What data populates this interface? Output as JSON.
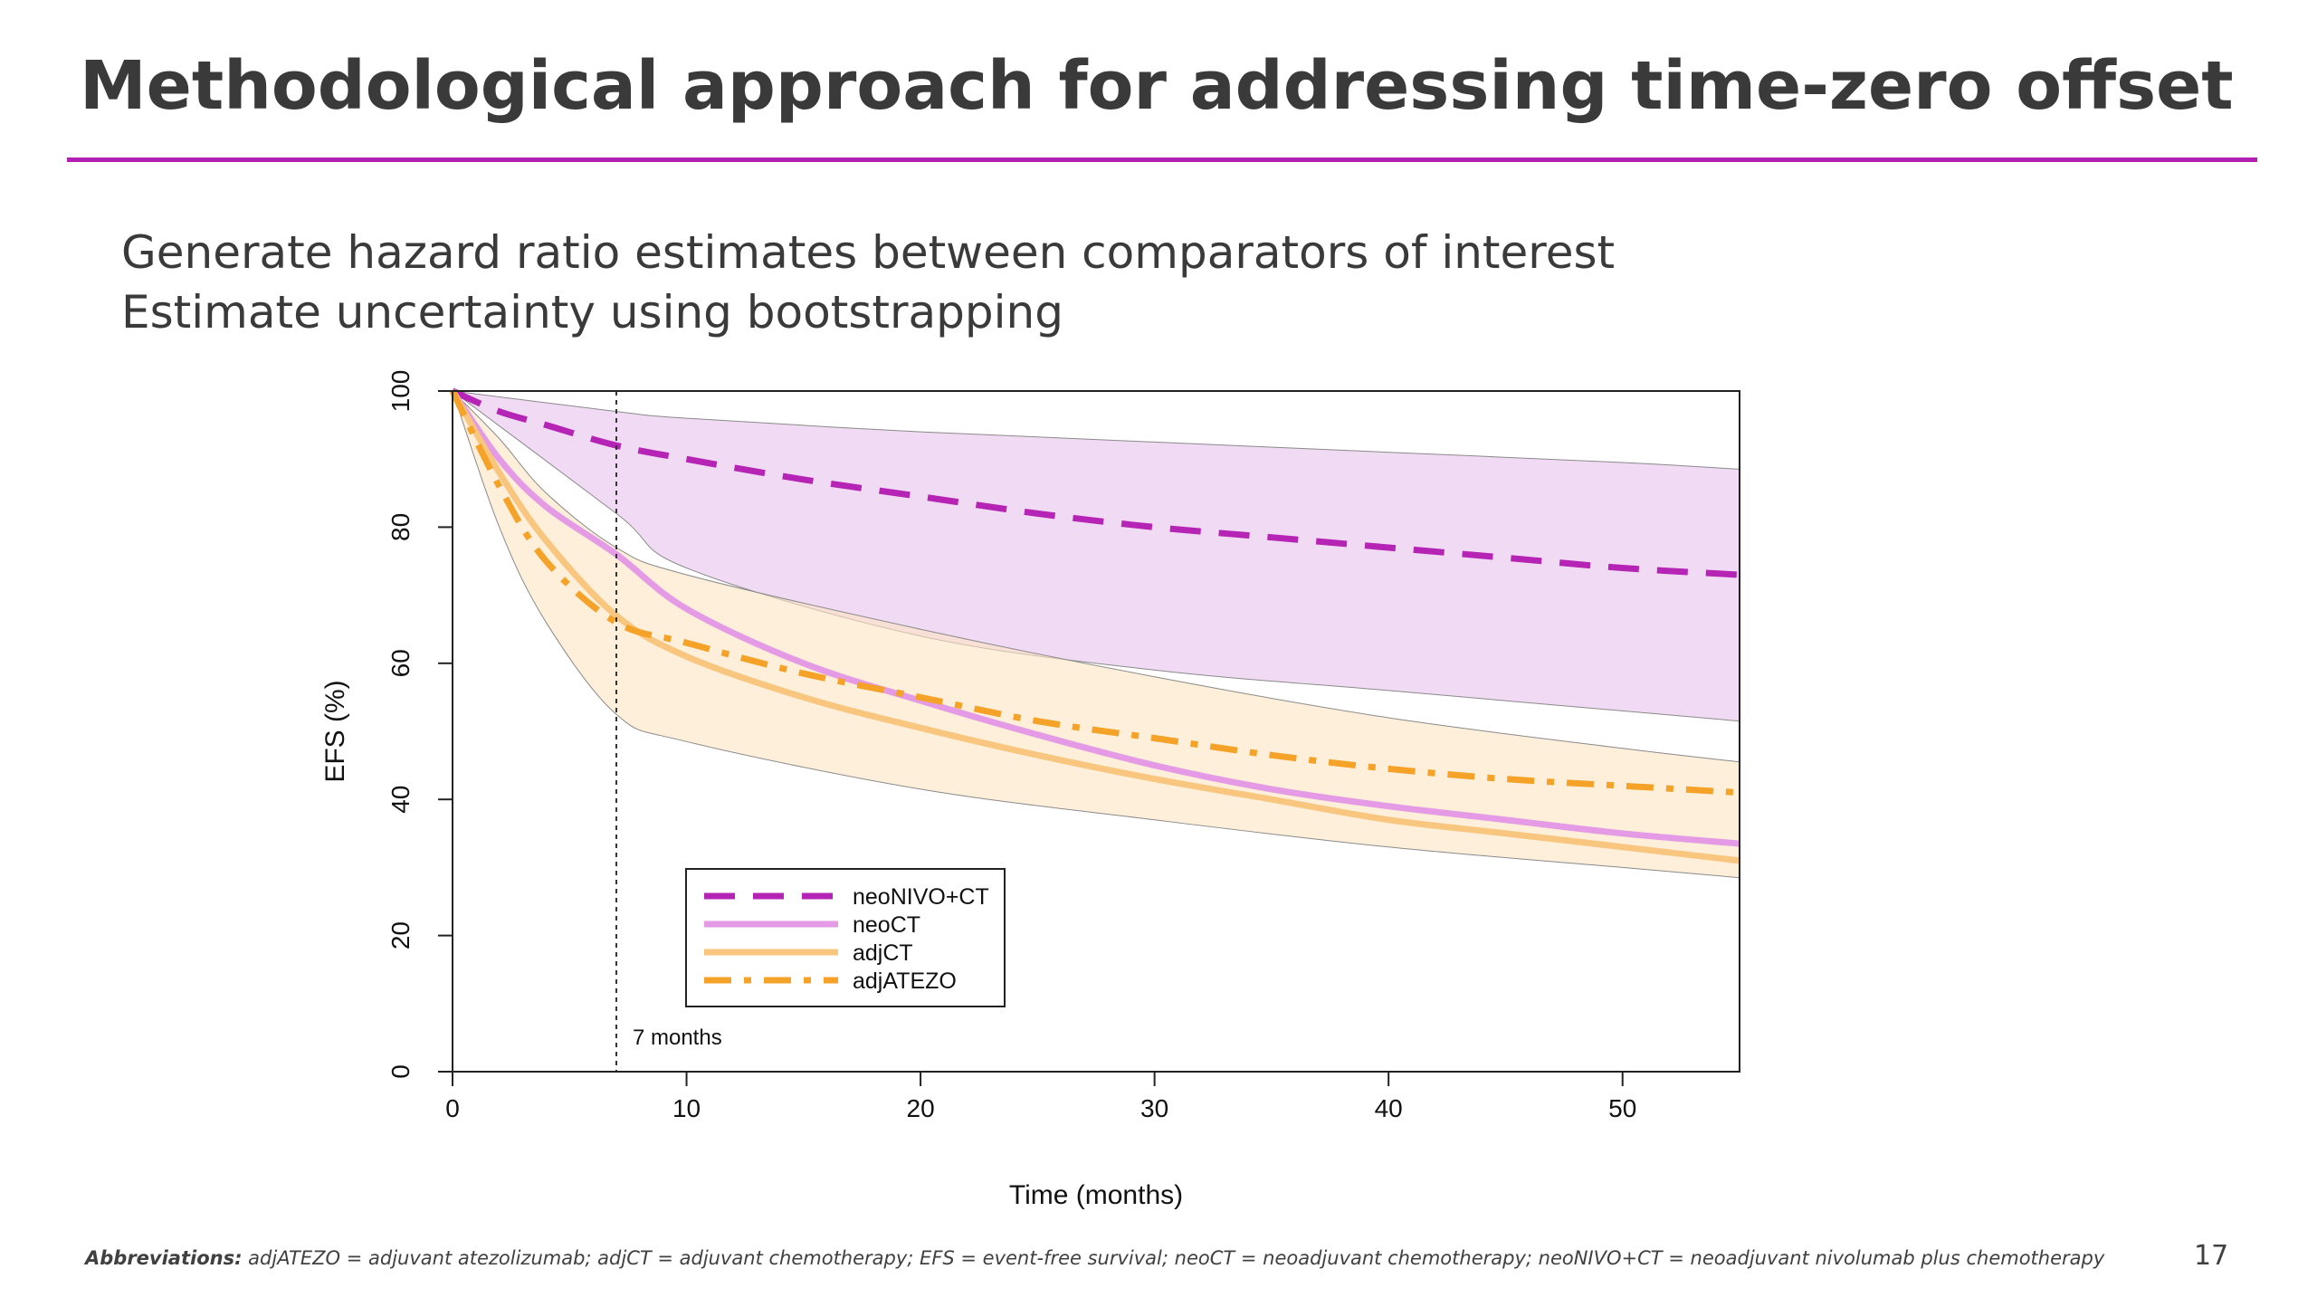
{
  "slide": {
    "title": "Methodological approach for addressing time-zero offset",
    "bullets": [
      "Generate hazard ratio estimates between comparators of interest",
      "Estimate uncertainty using bootstrapping"
    ],
    "footnote_label": "Abbreviations:",
    "footnote_text": " adjATEZO = adjuvant atezolizumab; adjCT = adjuvant chemotherapy; EFS = event-free survival; neoCT = neoadjuvant chemotherapy; neoNIVO+CT =  neoadjuvant nivolumab plus chemotherapy",
    "page_number": "17",
    "accent_color": "#b21fb2"
  },
  "chart_data": {
    "type": "line",
    "xlabel": "Time (months)",
    "ylabel": "EFS (%)",
    "xlim": [
      0,
      55
    ],
    "ylim": [
      0,
      100
    ],
    "xticks": [
      0,
      10,
      20,
      30,
      40,
      50
    ],
    "yticks": [
      0,
      20,
      40,
      60,
      80,
      100
    ],
    "legend_position": "bottom-left",
    "grid": false,
    "annotation": {
      "x": 7,
      "text": "7 months",
      "style": "vertical dotted line"
    },
    "series": [
      {
        "name": "neoNIVO+CT",
        "style": "dashed",
        "color": "#b524b5",
        "x": [
          0,
          2,
          4,
          7,
          10,
          15,
          20,
          25,
          30,
          35,
          40,
          45,
          50,
          55
        ],
        "values": [
          100,
          97,
          95,
          92,
          90,
          87,
          84.5,
          82,
          80,
          78.5,
          77,
          75.5,
          74,
          73
        ]
      },
      {
        "name": "neoCT",
        "style": "solid",
        "color": "#e59ae5",
        "x": [
          0,
          2,
          4,
          7,
          10,
          15,
          20,
          25,
          30,
          35,
          40,
          45,
          50,
          55
        ],
        "values": [
          100,
          90,
          83,
          76,
          68,
          60,
          54.5,
          49.5,
          45,
          41.5,
          39,
          37,
          35,
          33.5
        ]
      },
      {
        "name": "adjCT",
        "style": "solid",
        "color": "#f8c67e",
        "x": [
          0,
          2,
          4,
          7,
          10,
          15,
          20,
          25,
          30,
          35,
          40,
          45,
          50,
          55
        ],
        "values": [
          100,
          88,
          78,
          67,
          61,
          55,
          50.5,
          46.5,
          43,
          40,
          37,
          35,
          33,
          31
        ]
      },
      {
        "name": "adjATEZO",
        "style": "dot-dash",
        "color": "#f4a228",
        "x": [
          0,
          2,
          4,
          7,
          10,
          15,
          20,
          25,
          30,
          35,
          40,
          45,
          50,
          55
        ],
        "values": [
          100,
          86,
          75,
          66,
          63,
          58.5,
          55,
          51.5,
          49,
          46.5,
          44.5,
          43,
          42,
          41
        ]
      }
    ],
    "bands": [
      {
        "series": "neoNIVO+CT",
        "fill": "#e9c4ec",
        "x": [
          0,
          7,
          10,
          20,
          30,
          40,
          50,
          55
        ],
        "upper": [
          100,
          97,
          96,
          94,
          92.5,
          91,
          89.5,
          88.5
        ],
        "lower": [
          100,
          82,
          74,
          64,
          59,
          56,
          53,
          51.5
        ]
      },
      {
        "series": "neoCT / adjCT / adjATEZO",
        "fill": "#fde4c3",
        "x": [
          0,
          2,
          4,
          7,
          10,
          20,
          30,
          40,
          50,
          55
        ],
        "upper": [
          100,
          93,
          85,
          77,
          73,
          65,
          58,
          52,
          47.5,
          45.5
        ],
        "lower": [
          100,
          80,
          66,
          52.5,
          48.5,
          41.5,
          37,
          33,
          30,
          28.5
        ]
      }
    ]
  }
}
